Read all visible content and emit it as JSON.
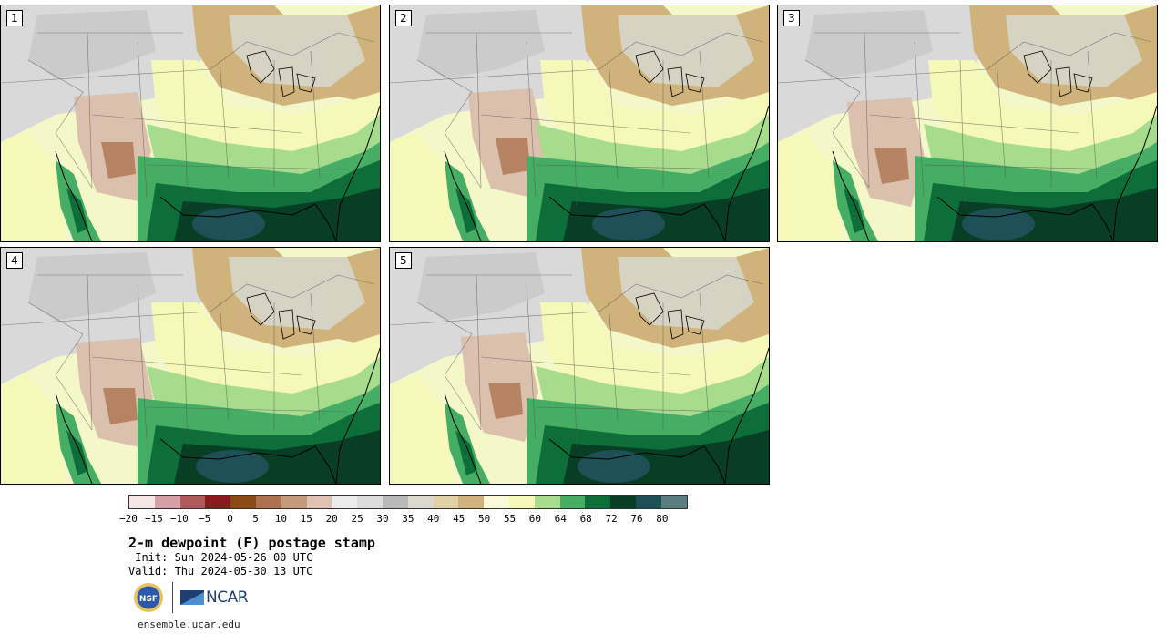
{
  "panels": [
    {
      "label": "1"
    },
    {
      "label": "2"
    },
    {
      "label": "3"
    },
    {
      "label": "4"
    },
    {
      "label": "5"
    }
  ],
  "colorbar": {
    "colors": [
      "#f5e6e6",
      "#d4a0a4",
      "#b05a5c",
      "#8c1a1c",
      "#8b4a14",
      "#ad7350",
      "#c4997c",
      "#dfc2b2",
      "#ececec",
      "#dcdcdc",
      "#b9b9b9",
      "#dbd8cc",
      "#e0d2a6",
      "#cfb37a",
      "#fafad9",
      "#f6f8b8",
      "#a6dc8c",
      "#46ad64",
      "#0d6e3a",
      "#073e24",
      "#1e5058",
      "#5a7d80"
    ],
    "tick_labels": [
      "−20",
      "−15",
      "−10",
      "−5",
      "0",
      "5",
      "10",
      "15",
      "20",
      "25",
      "30",
      "35",
      "40",
      "45",
      "50",
      "55",
      "60",
      "64",
      "68",
      "72",
      "76",
      "80"
    ]
  },
  "title": "2-m dewpoint (F) postage stamp",
  "init": " Init: Sun 2024-05-26 00 UTC",
  "valid": "Valid: Thu 2024-05-30 13 UTC",
  "logos": {
    "nsf": "NSF",
    "ncar": "NCAR"
  },
  "url": "ensemble.ucar.edu"
}
